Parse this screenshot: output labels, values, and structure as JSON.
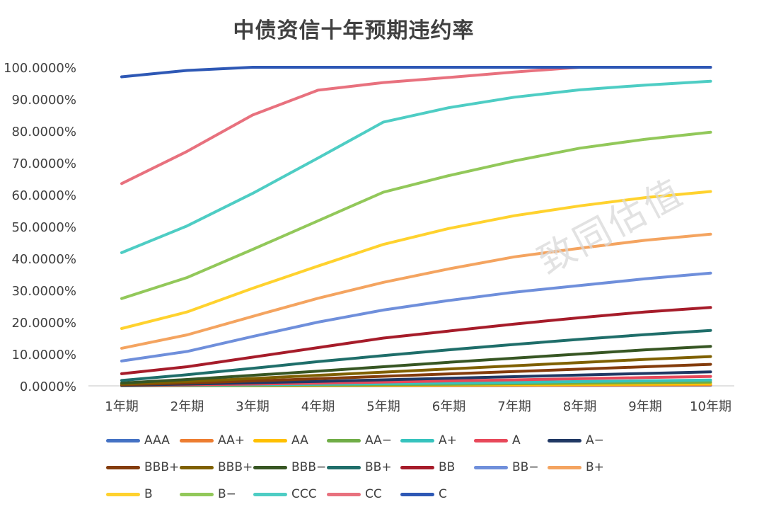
{
  "chart_data": {
    "type": "line",
    "title": "中债资信十年预期违约率",
    "xlabel": "",
    "ylabel": "",
    "categories": [
      "1年期",
      "2年期",
      "3年期",
      "4年期",
      "5年期",
      "6年期",
      "7年期",
      "8年期",
      "9年期",
      "10年期"
    ],
    "ylim": [
      0,
      100
    ],
    "y_ticks": [
      "0.0000%",
      "10.0000%",
      "20.0000%",
      "30.0000%",
      "40.0000%",
      "50.0000%",
      "60.0000%",
      "70.0000%",
      "80.0000%",
      "90.0000%",
      "100.0000%"
    ],
    "legend_position": "bottom",
    "watermark": "致同估值",
    "series": [
      {
        "name": "AAA",
        "color": "#4472C4",
        "values": [
          0.0,
          0.0,
          0.01,
          0.02,
          0.03,
          0.05,
          0.08,
          0.1,
          0.13,
          0.16
        ]
      },
      {
        "name": "AA+",
        "color": "#ED7D31",
        "values": [
          0.0,
          0.01,
          0.03,
          0.05,
          0.08,
          0.12,
          0.16,
          0.2,
          0.25,
          0.3
        ]
      },
      {
        "name": "AA",
        "color": "#FFC000",
        "values": [
          0.01,
          0.03,
          0.07,
          0.12,
          0.18,
          0.26,
          0.34,
          0.43,
          0.52,
          0.62
        ]
      },
      {
        "name": "AA−",
        "color": "#70AD47",
        "values": [
          0.02,
          0.07,
          0.15,
          0.26,
          0.38,
          0.52,
          0.67,
          0.83,
          1.0,
          1.17
        ]
      },
      {
        "name": "A+",
        "color": "#36C3BE",
        "values": [
          0.05,
          0.15,
          0.3,
          0.48,
          0.68,
          0.9,
          1.12,
          1.35,
          1.58,
          1.82
        ]
      },
      {
        "name": "A",
        "color": "#E8485A",
        "values": [
          0.1,
          0.3,
          0.55,
          0.85,
          1.2,
          1.55,
          1.9,
          2.25,
          2.6,
          2.95
        ]
      },
      {
        "name": "A−",
        "color": "#203864",
        "values": [
          0.2,
          0.55,
          0.95,
          1.4,
          1.9,
          2.4,
          2.9,
          3.4,
          3.9,
          4.4
        ]
      },
      {
        "name": "BBB+",
        "color": "#843C0C",
        "values": [
          0.35,
          0.9,
          1.55,
          2.25,
          3.0,
          3.75,
          4.5,
          5.25,
          6.0,
          6.75
        ]
      },
      {
        "name": "BBB+",
        "color": "#7F6000",
        "values": [
          0.55,
          1.35,
          2.3,
          3.3,
          4.3,
          5.3,
          6.3,
          7.3,
          8.3,
          9.2
        ]
      },
      {
        "name": "BBB−",
        "color": "#375623",
        "values": [
          0.9,
          2.0,
          3.3,
          4.6,
          6.0,
          7.4,
          8.7,
          10.0,
          11.3,
          12.4
        ]
      },
      {
        "name": "BB+",
        "color": "#1F6E6A",
        "values": [
          1.7,
          3.5,
          5.5,
          7.6,
          9.5,
          11.3,
          13.0,
          14.6,
          16.1,
          17.4
        ]
      },
      {
        "name": "BB",
        "color": "#A61C2A",
        "values": [
          3.8,
          6.0,
          9.0,
          12.0,
          15.0,
          17.2,
          19.4,
          21.4,
          23.2,
          24.6
        ]
      },
      {
        "name": "BB−",
        "color": "#6F8FDB",
        "values": [
          7.8,
          10.8,
          15.5,
          20.0,
          23.8,
          26.8,
          29.4,
          31.5,
          33.6,
          35.4
        ]
      },
      {
        "name": "B+",
        "color": "#F4A460",
        "values": [
          11.8,
          16.0,
          21.8,
          27.5,
          32.5,
          36.7,
          40.5,
          43.2,
          45.7,
          47.6
        ]
      },
      {
        "name": "B",
        "color": "#FFD22E",
        "values": [
          18.0,
          23.2,
          30.6,
          37.6,
          44.4,
          49.4,
          53.4,
          56.5,
          59.1,
          61.0
        ]
      },
      {
        "name": "B−",
        "color": "#92C85A",
        "values": [
          27.4,
          34.0,
          42.8,
          51.8,
          60.8,
          66.0,
          70.6,
          74.6,
          77.4,
          79.6
        ]
      },
      {
        "name": "CCC",
        "color": "#4ECDC4",
        "values": [
          41.8,
          50.2,
          60.4,
          71.5,
          82.8,
          87.3,
          90.6,
          92.9,
          94.4,
          95.6
        ]
      },
      {
        "name": "CC",
        "color": "#E8717E",
        "values": [
          63.5,
          73.6,
          85.0,
          92.8,
          95.2,
          96.8,
          98.5,
          100.0,
          100.0,
          100.0
        ]
      },
      {
        "name": "C",
        "color": "#2E58B5",
        "values": [
          97.0,
          99.0,
          100.0,
          100.0,
          100.0,
          100.0,
          100.0,
          100.0,
          100.0,
          100.0
        ]
      }
    ]
  }
}
